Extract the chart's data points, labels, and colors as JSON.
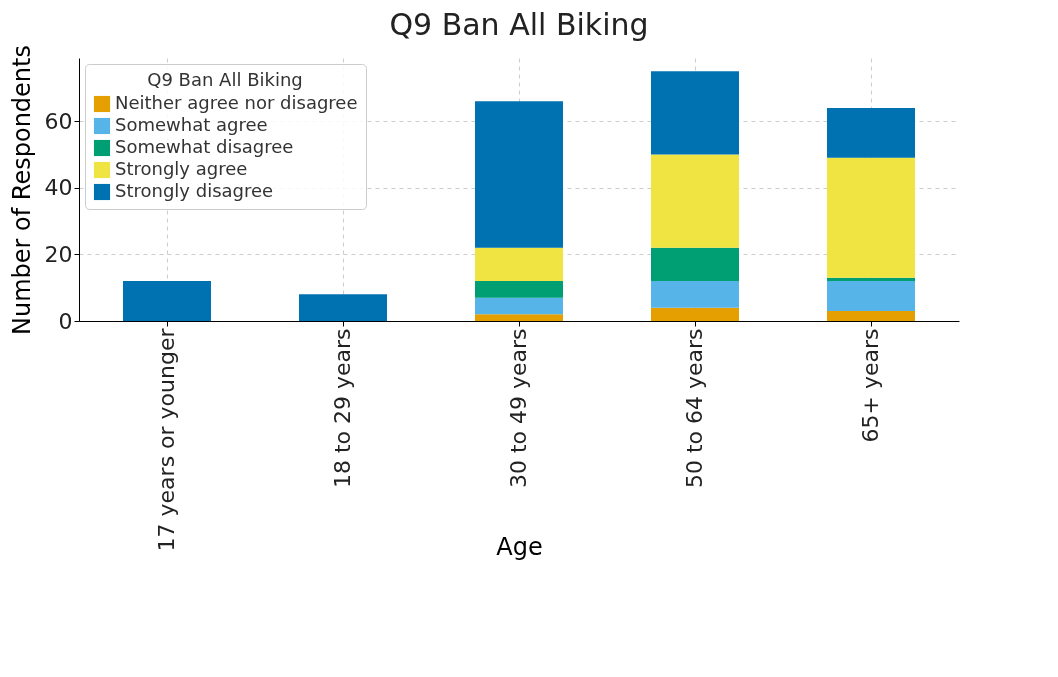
{
  "chart_data": {
    "type": "bar",
    "title": "Q9 Ban All Biking",
    "xlabel": "Age",
    "ylabel": "Number of Respondents",
    "legend_title": "Q9 Ban All Biking",
    "categories": [
      "17 years or younger",
      "18 to 29 years",
      "30 to 49 years",
      "50 to 64 years",
      "65+ years"
    ],
    "series": [
      {
        "name": "Neither agree nor disagree",
        "color": "#e69f00",
        "values": [
          0,
          0,
          2,
          4,
          3
        ]
      },
      {
        "name": "Somewhat agree",
        "color": "#56b4e9",
        "values": [
          0,
          0,
          5,
          8,
          9
        ]
      },
      {
        "name": "Somewhat disagree",
        "color": "#009e73",
        "values": [
          0,
          0,
          5,
          10,
          1
        ]
      },
      {
        "name": "Strongly agree",
        "color": "#f0e442",
        "values": [
          0,
          0,
          10,
          28,
          36
        ]
      },
      {
        "name": "Strongly disagree",
        "color": "#0072b2",
        "values": [
          12,
          8,
          44,
          25,
          15
        ]
      }
    ],
    "stacked": true,
    "ylim": [
      0,
      79
    ],
    "yticks": [
      0,
      20,
      40,
      60
    ],
    "grid": true,
    "legend": "top left"
  }
}
